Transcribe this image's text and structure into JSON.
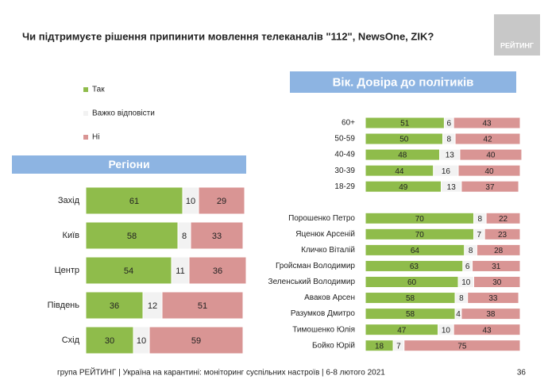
{
  "title": "Чи підтримуєте рішення припинити мовлення телеканалів \"112\", NewsOne, ZIK?",
  "logo": "РЕЙТИНГ",
  "footer": "група РЕЙТИНГ | Україна на карантині: моніторинг суспільних настроїв | 6-8 лютого 2021",
  "page_number": "36",
  "chart_data": [
    {
      "type": "bar",
      "orientation": "horizontal",
      "stacked": true,
      "title": "Регіони",
      "categories": [
        "Захід",
        "Київ",
        "Центр",
        "Південь",
        "Схід"
      ],
      "xlim": [
        0,
        100
      ],
      "series": [
        {
          "name": "Так",
          "color": "#8fbc4b",
          "values": [
            61,
            58,
            54,
            36,
            30
          ]
        },
        {
          "name": "Важко відповісти",
          "color": "#f2f2f2",
          "values": [
            10,
            8,
            11,
            12,
            10
          ]
        },
        {
          "name": "Ні",
          "color": "#d99594",
          "values": [
            29,
            33,
            36,
            51,
            59
          ]
        }
      ]
    },
    {
      "type": "bar",
      "orientation": "horizontal",
      "stacked": true,
      "title": "Вік. Довіра до політиків",
      "categories": [
        "60+",
        "50-59",
        "40-49",
        "30-39",
        "18-29",
        null,
        "Порошенко Петро",
        "Яценюк Арсеній",
        "Кличко Віталій",
        "Гройсман Володимир",
        "Зеленський Володимир",
        "Аваков Арсен",
        "Разумков Дмитро",
        "Тимошенко Юлія",
        "Бойко Юрій"
      ],
      "xlim": [
        0,
        100
      ],
      "series": [
        {
          "color": "#8fbc4b",
          "values": [
            51,
            50,
            48,
            44,
            49,
            null,
            70,
            70,
            64,
            63,
            60,
            58,
            58,
            47,
            18
          ]
        },
        {
          "color": "#f2f2f2",
          "values": [
            6,
            8,
            13,
            16,
            13,
            null,
            8,
            7,
            8,
            6,
            10,
            8,
            4,
            10,
            7
          ]
        },
        {
          "color": "#d99594",
          "values": [
            43,
            42,
            40,
            40,
            37,
            null,
            22,
            23,
            28,
            31,
            30,
            33,
            38,
            43,
            75
          ]
        }
      ]
    }
  ]
}
